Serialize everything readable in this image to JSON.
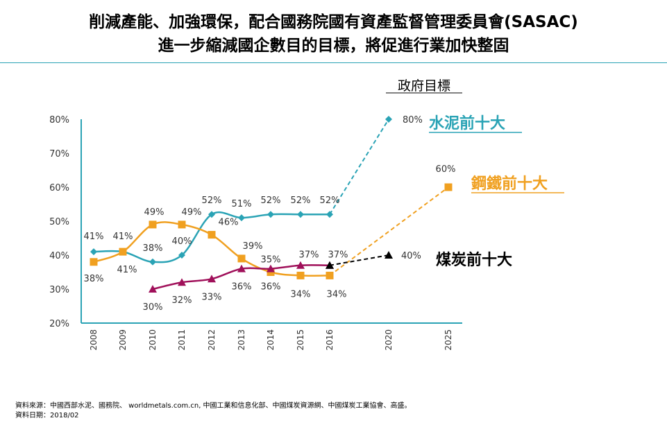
{
  "header": {
    "title_line1": "削減產能、加強環保，配合國務院國有資產監督管理委員會(SASAC)",
    "title_line2": "進一步縮減國企數目的目標，將促進行業加快整固",
    "rule_color": "#2aa3b5"
  },
  "chart_data": {
    "type": "line",
    "categories": [
      "2008",
      "2009",
      "2010",
      "2011",
      "2012",
      "2013",
      "2014",
      "2015",
      "2016",
      "2020",
      "2025"
    ],
    "y_ticks": [
      "20%",
      "30%",
      "40%",
      "50%",
      "60%",
      "70%",
      "80%"
    ],
    "ylim": [
      20,
      80
    ],
    "grid": false,
    "target_label": "政府目標",
    "series": [
      {
        "name": "水泥前十大",
        "color": "#2aa3b5",
        "marker": "diamond",
        "actual": [
          {
            "x": "2008",
            "y": 41
          },
          {
            "x": "2009",
            "y": 41
          },
          {
            "x": "2010",
            "y": 38
          },
          {
            "x": "2011",
            "y": 40
          },
          {
            "x": "2012",
            "y": 52
          },
          {
            "x": "2013",
            "y": 51
          },
          {
            "x": "2014",
            "y": 52
          },
          {
            "x": "2015",
            "y": 52
          },
          {
            "x": "2016",
            "y": 52
          }
        ],
        "target": {
          "x": "2020",
          "y": 80
        },
        "labels": [
          "41%",
          "41%",
          "38%",
          "40%",
          "52%",
          "51%",
          "52%",
          "52%",
          "52%"
        ],
        "target_label": "80%"
      },
      {
        "name": "鋼鐵前十大",
        "color": "#f0a020",
        "marker": "square",
        "actual": [
          {
            "x": "2008",
            "y": 38
          },
          {
            "x": "2009",
            "y": 41
          },
          {
            "x": "2010",
            "y": 49
          },
          {
            "x": "2011",
            "y": 49
          },
          {
            "x": "2012",
            "y": 46
          },
          {
            "x": "2013",
            "y": 39
          },
          {
            "x": "2014",
            "y": 35
          },
          {
            "x": "2015",
            "y": 34
          },
          {
            "x": "2016",
            "y": 34
          }
        ],
        "target": {
          "x": "2025",
          "y": 60
        },
        "labels": [
          "38%",
          "41%",
          "49%",
          "49%",
          "46%",
          "39%",
          "35%",
          "34%",
          "34%"
        ],
        "target_label": "60%"
      },
      {
        "name": "煤炭前十大",
        "color": "#a0105a",
        "marker": "triangle",
        "actual": [
          {
            "x": "2010",
            "y": 30
          },
          {
            "x": "2011",
            "y": 32
          },
          {
            "x": "2012",
            "y": 33
          },
          {
            "x": "2013",
            "y": 36
          },
          {
            "x": "2014",
            "y": 36
          },
          {
            "x": "2015",
            "y": 37
          },
          {
            "x": "2016",
            "y": 37
          }
        ],
        "target": {
          "x": "2020",
          "y": 40
        },
        "labels": [
          "30%",
          "32%",
          "33%",
          "36%",
          "36%",
          "37%",
          "37%"
        ],
        "target_label": "40%"
      }
    ]
  },
  "footer": {
    "source": "資料來源：中國西部水泥、國務院、 worldmetals.com.cn, 中國工業和信息化部、中國煤炭資源網、中國煤炭工業協會、高盛。",
    "date": "資料日期：2018/02"
  }
}
